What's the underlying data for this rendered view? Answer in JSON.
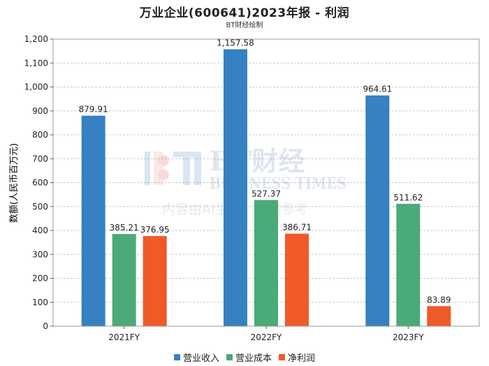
{
  "chart_data": {
    "type": "bar",
    "title": "万业企业(600641)2023年报 - 利润",
    "subtitle": "BT财经绘制",
    "ylabel": "数额(人民币百万元)",
    "xlabel": "",
    "categories": [
      "2021FY",
      "2022FY",
      "2023FY"
    ],
    "ylim": [
      0,
      1200
    ],
    "yticks": [
      0,
      100,
      200,
      300,
      400,
      500,
      600,
      700,
      800,
      900,
      "1,000",
      "1,100",
      "1,200"
    ],
    "grid": true,
    "legend_position": "bottom",
    "series": [
      {
        "name": "营业收入",
        "color": "#3581c1",
        "values": [
          879.91,
          1157.58,
          964.61
        ],
        "labels": [
          "879.91",
          "1,157.58",
          "964.61"
        ]
      },
      {
        "name": "营业成本",
        "color": "#4aaa78",
        "values": [
          385.21,
          527.37,
          511.62
        ],
        "labels": [
          "385.21",
          "527.37",
          "511.62"
        ]
      },
      {
        "name": "净利润",
        "color": "#f05a28",
        "values": [
          376.95,
          386.71,
          83.89
        ],
        "labels": [
          "376.95",
          "386.71",
          "83.89"
        ]
      }
    ]
  },
  "watermark": {
    "brand": "BT财经",
    "brand_en": "BUSINESS TIMES",
    "notice": "内容由AI生成，仅供参考"
  }
}
